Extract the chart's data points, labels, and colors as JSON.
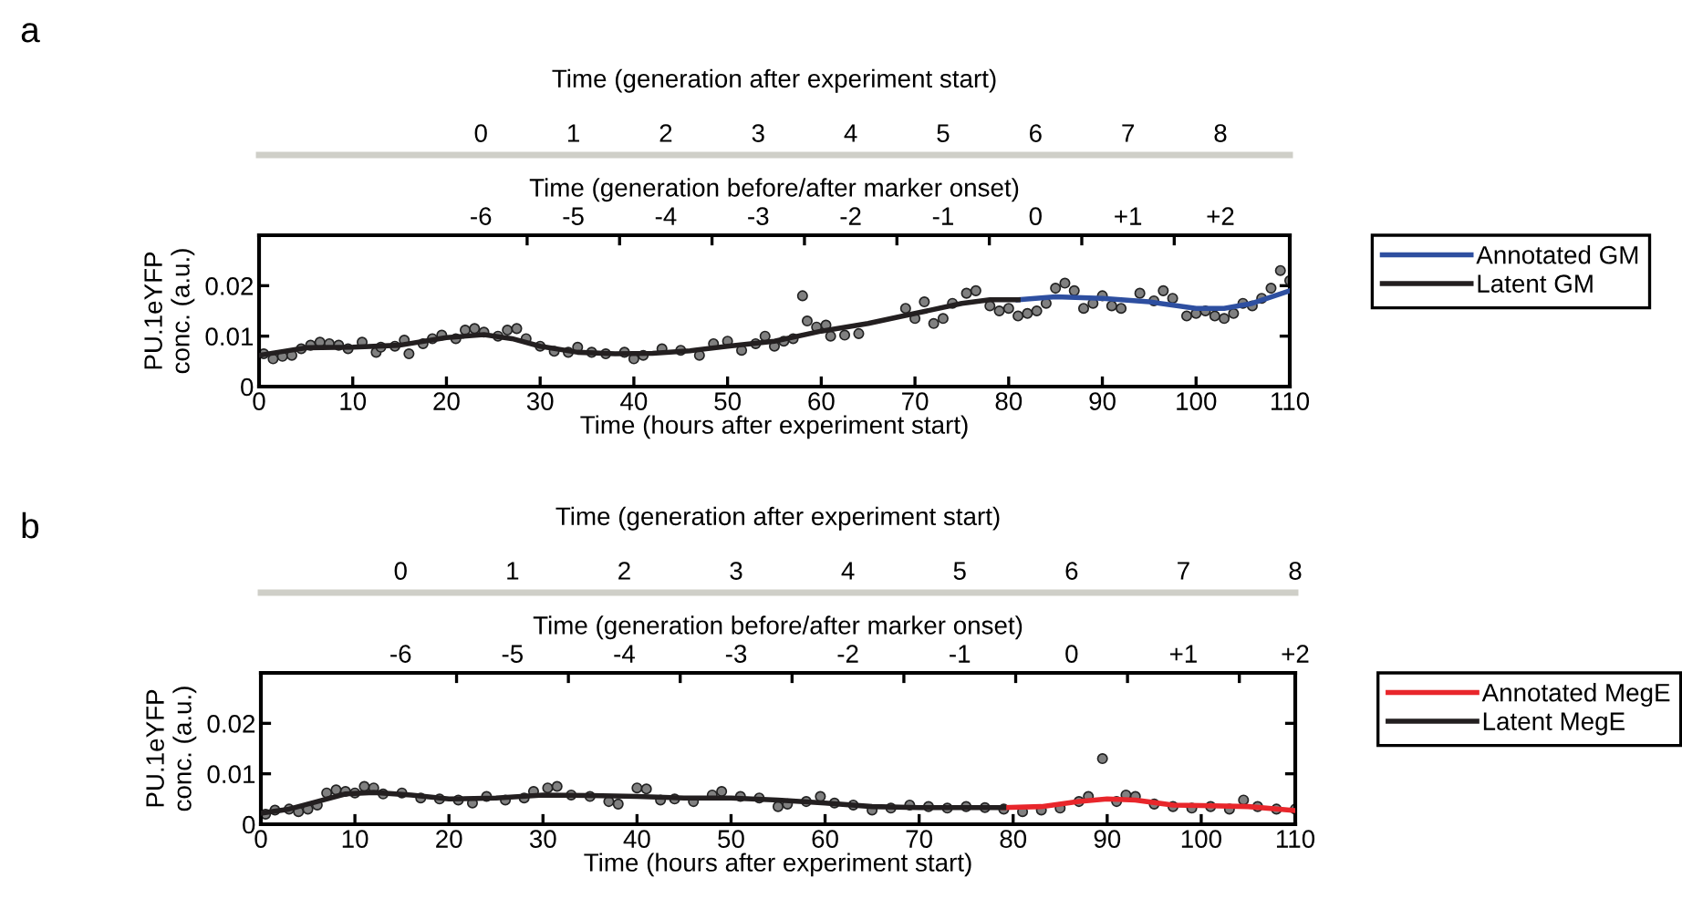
{
  "chart_data": [
    {
      "type": "scatter",
      "title": "a",
      "xlabel": "Time (hours after experiment start)",
      "ylabel": "PU.1eYFP\nconc. (a.u.)",
      "x2label": "Time (generation before/after marker onset)",
      "xlim": [
        0,
        110
      ],
      "xticks": [
        0,
        10,
        20,
        30,
        40,
        50,
        60,
        70,
        80,
        90,
        100,
        110
      ],
      "ylim": [
        0,
        0.03
      ],
      "yticks": [
        0,
        0.01,
        0.02
      ],
      "x2lim": [
        -8.4,
        2.75
      ],
      "x2ticks": [
        -6,
        -5,
        -4,
        -3,
        -2,
        -1,
        0,
        {
          "value": 1,
          "label": "+1"
        },
        {
          "value": 2,
          "label": "+2"
        },
        {
          "value": -5.5,
          "label": null
        },
        {
          "value": -4.5,
          "label": null
        },
        {
          "value": -3.5,
          "label": null
        },
        {
          "value": -2.5,
          "label": null
        },
        {
          "value": -1.5,
          "label": null
        },
        {
          "value": -0.5,
          "label": null
        },
        {
          "value": 0.5,
          "label": null
        },
        {
          "value": 1.5,
          "label": null
        }
      ],
      "annotations": [
        "Time (generation after experiment start)",
        "0",
        "1",
        "2",
        "3",
        "4",
        "5",
        "6",
        "7",
        "8"
      ],
      "legend": "right",
      "grid": false,
      "series": [
        {
          "marker": "circle",
          "color": "#808080",
          "x": [
            0.5,
            1.5,
            2.5,
            3.5,
            4.5,
            5.5,
            6.5,
            7.5,
            8.5,
            9.5,
            11,
            12.5,
            13,
            14.5,
            15.5,
            16,
            17.5,
            18.5,
            19.5,
            21,
            22,
            23,
            24,
            25.5,
            26.5,
            27.5,
            28.5,
            30,
            31.5,
            33,
            34,
            35.5,
            37,
            39,
            40,
            41,
            43,
            45,
            47,
            48.5,
            50,
            51.5,
            53,
            54,
            55,
            56,
            57,
            58,
            58.5,
            59.5,
            60.5,
            61,
            62.5,
            64,
            69,
            70,
            71,
            72,
            73,
            74,
            75.5,
            76.5,
            78,
            79,
            80,
            81,
            82,
            83,
            84,
            85,
            86,
            87,
            88,
            89,
            90,
            91,
            92,
            94,
            95.5,
            96.5,
            97.5,
            99,
            100,
            101,
            102,
            103,
            104,
            105,
            106,
            107,
            108,
            109,
            110
          ],
          "values": [
            0.0065,
            0.0055,
            0.006,
            0.0062,
            0.0075,
            0.0082,
            0.0088,
            0.0085,
            0.0082,
            0.0075,
            0.0088,
            0.0068,
            0.0078,
            0.008,
            0.0092,
            0.0065,
            0.0085,
            0.0095,
            0.0102,
            0.0095,
            0.0112,
            0.0115,
            0.0108,
            0.01,
            0.0112,
            0.0115,
            0.0095,
            0.008,
            0.007,
            0.0068,
            0.0078,
            0.0068,
            0.0065,
            0.0068,
            0.0055,
            0.0062,
            0.0075,
            0.0072,
            0.0062,
            0.0085,
            0.009,
            0.0072,
            0.0085,
            0.01,
            0.008,
            0.009,
            0.0095,
            0.018,
            0.013,
            0.0118,
            0.0122,
            0.01,
            0.0102,
            0.0105,
            0.0155,
            0.0135,
            0.0168,
            0.0125,
            0.0135,
            0.0165,
            0.0185,
            0.019,
            0.016,
            0.015,
            0.0155,
            0.014,
            0.0145,
            0.015,
            0.0165,
            0.0195,
            0.0205,
            0.019,
            0.0155,
            0.0165,
            0.018,
            0.016,
            0.0155,
            0.0185,
            0.017,
            0.019,
            0.0175,
            0.014,
            0.0145,
            0.015,
            0.014,
            0.0135,
            0.0145,
            0.0165,
            0.016,
            0.0175,
            0.0195,
            0.023,
            0.021
          ]
        },
        {
          "type": "line",
          "name": "Annotated GM",
          "color": "#2e4fa0",
          "x": [
            81,
            85,
            90,
            95,
            100,
            103,
            106,
            110
          ],
          "values": [
            0.0172,
            0.0178,
            0.0175,
            0.0168,
            0.0155,
            0.0155,
            0.0165,
            0.019
          ]
        },
        {
          "type": "line",
          "name": "Latent GM",
          "color": "#231f20",
          "x": [
            0,
            2,
            5,
            10,
            15,
            20,
            24,
            27,
            30,
            34,
            38,
            42,
            46,
            50,
            55,
            60,
            65,
            70,
            75,
            78,
            81
          ],
          "values": [
            0.0062,
            0.0068,
            0.0077,
            0.0078,
            0.0082,
            0.0097,
            0.0103,
            0.0095,
            0.008,
            0.0068,
            0.0065,
            0.0066,
            0.0071,
            0.008,
            0.009,
            0.011,
            0.0125,
            0.0145,
            0.0165,
            0.0172,
            0.0172
          ]
        }
      ]
    },
    {
      "type": "scatter",
      "title": "b",
      "xlabel": "Time (hours after experiment start)",
      "ylabel": "PU.1eYFP\nconc. (a.u.)",
      "x2label": "Time (generation before/after marker onset)",
      "xlim": [
        0,
        110
      ],
      "xticks": [
        0,
        10,
        20,
        30,
        40,
        50,
        60,
        70,
        80,
        90,
        100,
        110
      ],
      "ylim": [
        0,
        0.03
      ],
      "yticks": [
        0,
        0.01,
        0.02
      ],
      "x2lim": [
        -7.25,
        2.0
      ],
      "x2ticks": [
        -6,
        -5,
        -4,
        -3,
        -2,
        -1,
        0,
        {
          "value": 1,
          "label": "+1"
        },
        {
          "value": 2,
          "label": "+2"
        },
        {
          "value": -5.5,
          "label": null
        },
        {
          "value": -4.5,
          "label": null
        },
        {
          "value": -3.5,
          "label": null
        },
        {
          "value": -2.5,
          "label": null
        },
        {
          "value": -1.5,
          "label": null
        },
        {
          "value": -0.5,
          "label": null
        },
        {
          "value": 0.5,
          "label": null
        },
        {
          "value": 1.5,
          "label": null
        }
      ],
      "annotations": [
        "Time (generation after experiment start)",
        "0",
        "1",
        "2",
        "3",
        "4",
        "5",
        "6",
        "7",
        "8"
      ],
      "legend": "right",
      "grid": false,
      "series": [
        {
          "marker": "circle",
          "color": "#808080",
          "x": [
            0.5,
            1.5,
            3,
            4,
            5,
            6,
            7,
            8,
            9,
            10,
            11,
            12,
            13,
            15,
            17,
            19,
            21,
            22.5,
            24,
            26,
            28,
            29,
            30.5,
            31.5,
            33,
            35,
            37,
            38,
            40,
            41,
            42.5,
            44,
            46,
            48,
            49,
            51,
            53,
            55,
            56,
            58,
            59.5,
            61,
            63,
            65,
            67,
            69,
            71,
            73,
            75,
            77,
            79,
            81,
            83,
            85,
            87,
            88,
            89.5,
            91,
            92,
            93,
            95,
            97,
            99,
            101,
            103,
            104.5,
            106,
            108,
            110
          ],
          "values": [
            0.002,
            0.0028,
            0.003,
            0.0025,
            0.003,
            0.0038,
            0.0062,
            0.0068,
            0.0065,
            0.0062,
            0.0075,
            0.0072,
            0.006,
            0.0062,
            0.0052,
            0.005,
            0.0048,
            0.0042,
            0.0055,
            0.0048,
            0.0052,
            0.0065,
            0.0072,
            0.0075,
            0.0058,
            0.0055,
            0.0045,
            0.004,
            0.0072,
            0.007,
            0.0048,
            0.005,
            0.0045,
            0.0058,
            0.0065,
            0.0055,
            0.0052,
            0.0035,
            0.004,
            0.0045,
            0.0055,
            0.0042,
            0.0038,
            0.0028,
            0.0032,
            0.0038,
            0.0035,
            0.0032,
            0.0035,
            0.0033,
            0.003,
            0.0025,
            0.0028,
            0.0032,
            0.0045,
            0.0055,
            0.013,
            0.0045,
            0.0058,
            0.0055,
            0.004,
            0.0035,
            0.0032,
            0.0035,
            0.003,
            0.0048,
            0.0035,
            0.003,
            0.003
          ]
        },
        {
          "type": "line",
          "name": "Annotated MegE",
          "color": "#e8262b",
          "x": [
            79,
            83,
            87,
            90,
            93,
            97,
            100,
            105,
            110
          ],
          "values": [
            0.0033,
            0.0035,
            0.0045,
            0.005,
            0.0048,
            0.0038,
            0.0037,
            0.0035,
            0.0027
          ]
        },
        {
          "type": "line",
          "name": "Latent MegE",
          "color": "#231f20",
          "x": [
            0,
            3,
            6,
            9,
            12,
            16,
            20,
            25,
            30,
            35,
            40,
            45,
            50,
            55,
            60,
            65,
            70,
            75,
            79
          ],
          "values": [
            0.0022,
            0.003,
            0.0045,
            0.006,
            0.0063,
            0.0058,
            0.005,
            0.0052,
            0.0058,
            0.0057,
            0.0055,
            0.0052,
            0.0052,
            0.0048,
            0.0042,
            0.0035,
            0.0033,
            0.0033,
            0.0033
          ]
        }
      ]
    }
  ]
}
